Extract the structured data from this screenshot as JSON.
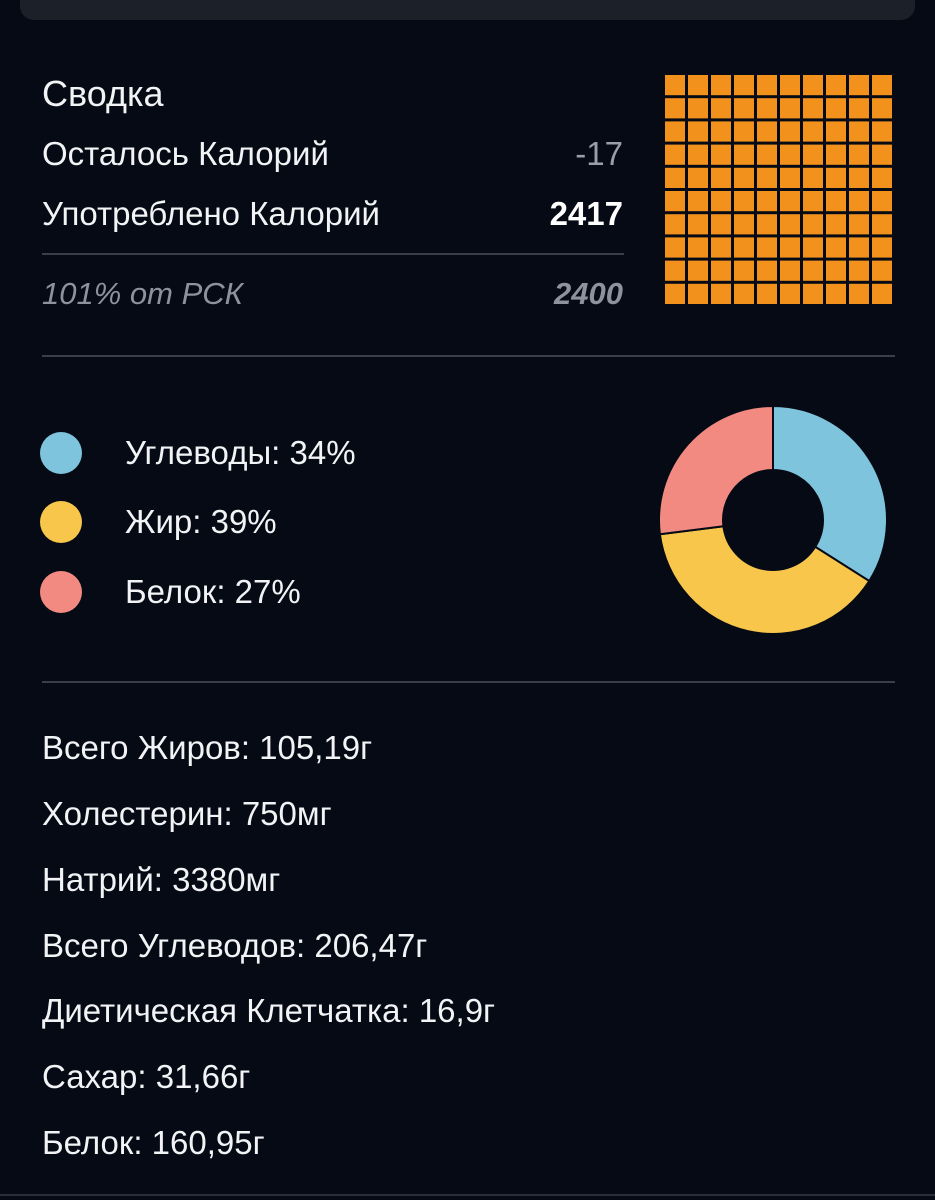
{
  "summary": {
    "title": "Сводка",
    "remaining_label": "Осталось Калорий",
    "remaining_value": "-17",
    "consumed_label": "Употреблено Калорий",
    "consumed_value": "2417",
    "rdi_label": "101% от РСК",
    "rdi_value": "2400",
    "waffle": {
      "rows": 10,
      "cols": 10,
      "filled": 100,
      "color": "#f2921c"
    }
  },
  "macros": {
    "colors": {
      "carbs": "#7ec4dc",
      "fat": "#f7c64a",
      "protein": "#f28a82"
    },
    "carbs_label": "Углеводы: 34%",
    "fat_label": "Жир: 39%",
    "protein_label": "Белок: 27%"
  },
  "chart_data": {
    "type": "pie",
    "categories": [
      "Углеводы",
      "Жир",
      "Белок"
    ],
    "values": [
      34,
      39,
      27
    ],
    "title": "",
    "colors": [
      "#7ec4dc",
      "#f7c64a",
      "#f28a82"
    ],
    "donut": true
  },
  "nutrients": [
    "Всего Жиров: 105,19г",
    "Холестерин: 750мг",
    "Натрий: 3380мг",
    "Всего Углеводов: 206,47г",
    "Диетическая Клетчатка: 16,9г",
    "Сахар: 31,66г",
    "Белок: 160,95г"
  ]
}
